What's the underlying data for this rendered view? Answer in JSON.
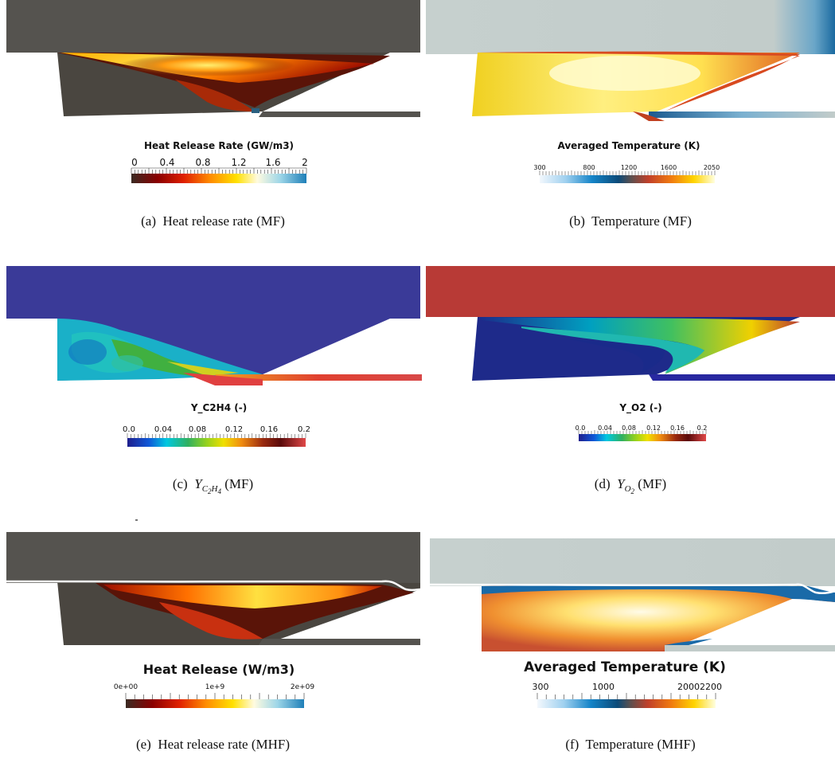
{
  "panels": [
    {
      "id": "a",
      "bar_title": "Heat Release Rate (GW/m3)",
      "ticks": [
        "0",
        "0.4",
        "0.8",
        "1.2",
        "1.6",
        "2"
      ],
      "caption_label": "(a)",
      "caption_text": "Heat release rate (MF)",
      "colormap": [
        "#3a2a22",
        "#8a0000",
        "#e02000",
        "#ff8c00",
        "#ffe000",
        "#fffbe0",
        "#9ed6e8",
        "#1e7fb8"
      ]
    },
    {
      "id": "b",
      "bar_title": "Averaged Temperature (K)",
      "ticks": [
        "300",
        "800",
        "1200",
        "1600",
        "2050"
      ],
      "caption_label": "(b)",
      "caption_text": "Temperature (MF)",
      "colormap": [
        "#f3f8fd",
        "#9fd0ef",
        "#1484c8",
        "#0c4a78",
        "#5a5050",
        "#c0402a",
        "#f07a10",
        "#ffd400",
        "#ffffe0"
      ]
    },
    {
      "id": "c",
      "bar_title": "Y_C2H4 (-)",
      "ticks": [
        "0.0",
        "0.04",
        "0.08",
        "0.12",
        "0.16",
        "0.2"
      ],
      "caption_label": "(c)",
      "caption_var": "Y",
      "caption_sub": "C",
      "caption_sub2": "2",
      "caption_sub3": "H",
      "caption_sub4": "4",
      "caption_text": "(MF)",
      "colormap": [
        "#1e1e8c",
        "#1058d8",
        "#00c8e0",
        "#30b060",
        "#90d020",
        "#f0e000",
        "#f08c10",
        "#9a2a10",
        "#5a0a0a",
        "#e04848"
      ]
    },
    {
      "id": "d",
      "bar_title": "Y_O2 (-)",
      "ticks": [
        "0.0",
        "0.04",
        "0.08",
        "0.12",
        "0.16",
        "0.2"
      ],
      "caption_label": "(d)",
      "caption_var": "Y",
      "caption_sub": "O",
      "caption_sub2": "2",
      "caption_text": "(MF)",
      "colormap": [
        "#1e1e8c",
        "#1058d8",
        "#00c8e0",
        "#30b060",
        "#90d020",
        "#f0e000",
        "#f08c10",
        "#9a2a10",
        "#5a0a0a",
        "#e04848"
      ]
    },
    {
      "id": "e",
      "bar_title": "Heat Release (W/m3)",
      "ticks": [
        "0e+00",
        "1e+9",
        "2e+09"
      ],
      "caption_label": "(e)",
      "caption_text": "Heat release rate (MHF)",
      "colormap": [
        "#3a2a22",
        "#8a0000",
        "#e02000",
        "#ff8c00",
        "#ffe000",
        "#fffbe0",
        "#9ed6e8",
        "#1e7fb8"
      ]
    },
    {
      "id": "f",
      "bar_title": "Averaged Temperature (K)",
      "ticks": [
        "300",
        "1000",
        "20002200"
      ],
      "caption_label": "(f)",
      "caption_text": "Temperature (MHF)",
      "colormap": [
        "#f3f8fd",
        "#9fd0ef",
        "#1484c8",
        "#0c4a78",
        "#5a5050",
        "#c0402a",
        "#f07a10",
        "#ffd400",
        "#ffffe0"
      ]
    }
  ]
}
